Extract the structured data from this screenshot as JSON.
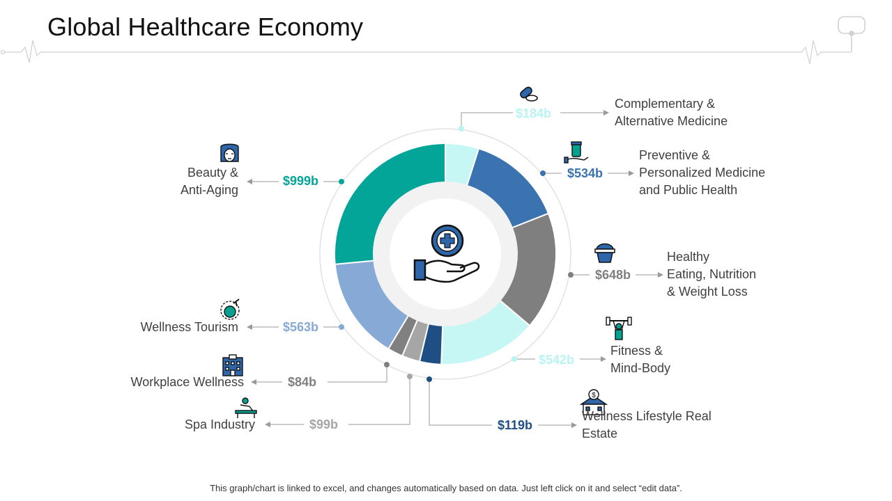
{
  "slide": {
    "title": "Global Healthcare Economy",
    "footnote": "This graph/chart is linked to excel, and changes automatically based on data. Just left click on it and select “edit data”."
  },
  "icons": {
    "center": "hand-medical-cross-icon",
    "corner": "stethoscope-icon"
  },
  "chart_data": {
    "type": "donut",
    "unit": "b",
    "currency": "$",
    "segments": [
      {
        "label": "Complementary &\nAlternative Medicine",
        "value": 184,
        "value_label": "$184b",
        "color": "#c6f7f5",
        "value_color": "#b8f4f2",
        "icon": "pills-icon"
      },
      {
        "label": "Preventive &\nPersonalized Medicine\nand Public Health",
        "value": 534,
        "value_label": "$534b",
        "color": "#3b72b0",
        "value_color": "#3b72b0",
        "icon": "medicine-hand-icon"
      },
      {
        "label": "Healthy\nEating, Nutrition\n& Weight Loss",
        "value": 648,
        "value_label": "$648b",
        "color": "#7f7f7f",
        "value_color": "#7f7f7f",
        "icon": "food-basket-icon"
      },
      {
        "label": "Fitness &\nMind-Body",
        "value": 542,
        "value_label": "$542b",
        "color": "#c6f7f5",
        "value_color": "#b8f4f2",
        "icon": "weightlifting-icon"
      },
      {
        "label": "Wellness Lifestyle Real\nEstate",
        "value": 119,
        "value_label": "$119b",
        "color": "#1f4e85",
        "value_color": "#1f4e85",
        "icon": "house-dollar-icon"
      },
      {
        "label": "Spa Industry",
        "value": 99,
        "value_label": "$99b",
        "color": "#a6a6a6",
        "value_color": "#a6a6a6",
        "icon": "spa-massage-icon"
      },
      {
        "label": "Workplace Wellness",
        "value": 84,
        "value_label": "$84b",
        "color": "#808080",
        "value_color": "#808080",
        "icon": "office-building-icon"
      },
      {
        "label": "Wellness Tourism",
        "value": 563,
        "value_label": "$563b",
        "color": "#86a9d6",
        "value_color": "#86a9d6",
        "icon": "globe-plane-icon"
      },
      {
        "label": "Beauty &\nAnti-Aging",
        "value": 999,
        "value_label": "$999b",
        "color": "#02a597",
        "value_color": "#02a597",
        "icon": "woman-face-icon"
      }
    ]
  }
}
